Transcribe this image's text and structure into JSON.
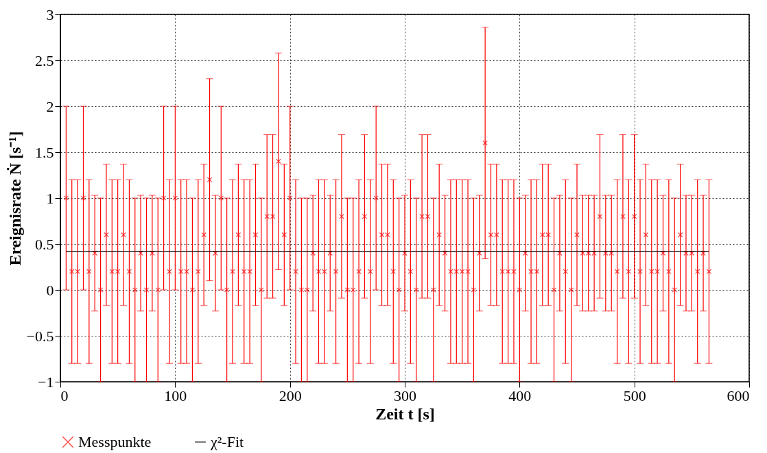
{
  "chart_data": {
    "type": "scatter",
    "xlabel": "Zeit t [s]",
    "ylabel": "Ereignisrate Ṅ [s⁻¹]",
    "xlim": [
      0,
      600
    ],
    "xticks": [
      0,
      100,
      200,
      300,
      400,
      500,
      600
    ],
    "ylim": [
      -1,
      3
    ],
    "yticks": [
      -1,
      -0.5,
      0,
      0.5,
      1,
      1.5,
      2,
      2.5,
      3
    ],
    "grid": true,
    "legend": "bottom",
    "series": [
      {
        "name": "Messpunkte",
        "color": "#ff0000",
        "marker": "cross",
        "x": [
          5,
          10,
          15,
          20,
          25,
          30,
          35,
          40,
          45,
          50,
          55,
          60,
          65,
          70,
          75,
          80,
          85,
          90,
          95,
          100,
          105,
          110,
          115,
          120,
          125,
          130,
          135,
          140,
          145,
          150,
          155,
          160,
          165,
          170,
          175,
          180,
          185,
          190,
          195,
          200,
          205,
          210,
          215,
          220,
          225,
          230,
          235,
          240,
          245,
          250,
          255,
          260,
          265,
          270,
          275,
          280,
          285,
          290,
          295,
          300,
          305,
          310,
          315,
          320,
          325,
          330,
          335,
          340,
          345,
          350,
          355,
          360,
          365,
          370,
          375,
          380,
          385,
          390,
          395,
          400,
          405,
          410,
          415,
          420,
          425,
          430,
          435,
          440,
          445,
          450,
          455,
          460,
          465,
          470,
          475,
          480,
          485,
          490,
          495,
          500,
          505,
          510,
          515,
          520,
          525,
          530,
          535,
          540,
          545,
          550,
          555,
          560,
          565
        ],
        "values": [
          1,
          0.2,
          0.2,
          1,
          0.2,
          0.4,
          0,
          0.6,
          0.2,
          0.2,
          0.6,
          0.2,
          0,
          0.4,
          0,
          0.4,
          0,
          1,
          0.2,
          1,
          0.2,
          0.2,
          0,
          0.2,
          0.6,
          1.2,
          0.4,
          1,
          0,
          0.2,
          0.6,
          0.2,
          0.2,
          0.6,
          0,
          0.8,
          0.8,
          1.4,
          0.6,
          1,
          0.2,
          0,
          0,
          0.4,
          0.2,
          0.2,
          0.4,
          0.2,
          0.8,
          0,
          0,
          0.2,
          0.8,
          0.2,
          1,
          0.6,
          0.6,
          0.2,
          0,
          0.4,
          0.2,
          0,
          0.8,
          0.8,
          0,
          0.6,
          0.4,
          0.2,
          0.2,
          0.2,
          0.2,
          0,
          0.4,
          1.6,
          0.6,
          0.6,
          0.2,
          0.2,
          0.2,
          0,
          0.4,
          0.2,
          0.2,
          0.6,
          0.6,
          0,
          0.4,
          0.2,
          0,
          0.6,
          0.4,
          0.4,
          0.4,
          0.8,
          0.4,
          0.4,
          0.2,
          0.8,
          0.2,
          0.8,
          0.2,
          0.6,
          0.2,
          0.2,
          0.4,
          0.2,
          0,
          0.6,
          0.4,
          0.4,
          0.2,
          0.4,
          0.2
        ],
        "errors": [
          1,
          1,
          1,
          1,
          1,
          0.63,
          1,
          0.77,
          1,
          1,
          0.77,
          1,
          1,
          0.63,
          1,
          0.63,
          1,
          1,
          1,
          1,
          1,
          1,
          1,
          1,
          0.77,
          1.1,
          0.63,
          1,
          1,
          1,
          0.77,
          1,
          1,
          0.77,
          1,
          0.89,
          0.89,
          1.18,
          0.77,
          1,
          1,
          1,
          1,
          0.63,
          1,
          1,
          0.63,
          1,
          0.89,
          1,
          1,
          1,
          0.89,
          1,
          1,
          0.77,
          0.77,
          1,
          1,
          0.63,
          1,
          1,
          0.89,
          0.89,
          1,
          0.77,
          0.63,
          1,
          1,
          1,
          1,
          1,
          0.63,
          1.26,
          0.77,
          0.77,
          1,
          1,
          1,
          1,
          0.63,
          1,
          1,
          0.77,
          0.77,
          1,
          0.63,
          1,
          1,
          0.77,
          0.63,
          0.63,
          0.63,
          0.89,
          0.63,
          0.63,
          1,
          0.89,
          1,
          0.89,
          1,
          0.77,
          1,
          1,
          0.63,
          1,
          1,
          0.77,
          0.63,
          0.63,
          1,
          0.63,
          1
        ]
      },
      {
        "name": "χ²-Fit",
        "type": "line",
        "color": "#000000",
        "line_style": "solid",
        "x": [
          5,
          565
        ],
        "values": [
          0.42,
          0.42
        ]
      }
    ]
  }
}
